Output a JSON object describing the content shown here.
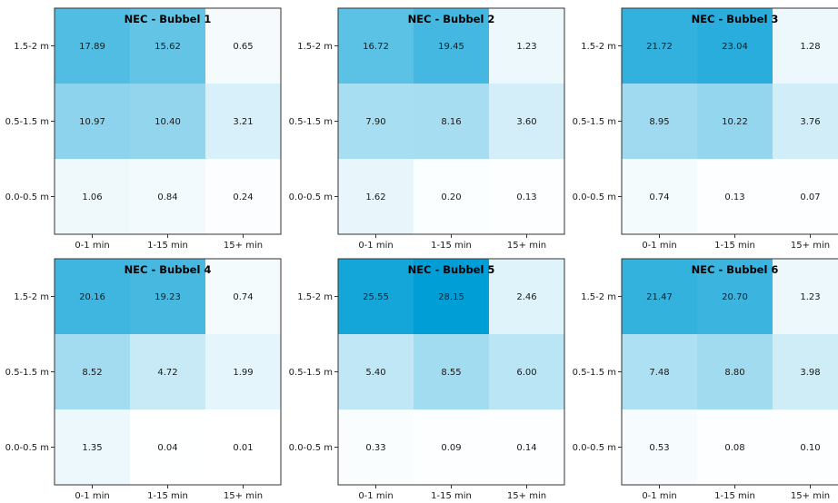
{
  "chart_data": [
    {
      "type": "heatmap",
      "title": "NEC - Bubbel 1",
      "x_categories": [
        "0-1 min",
        "1-15 min",
        "15+ min"
      ],
      "y_categories": [
        "1.5-2 m",
        "0.5-1.5 m",
        "0.0-0.5 m"
      ],
      "values": [
        [
          17.89,
          15.62,
          0.65
        ],
        [
          10.97,
          10.4,
          3.21
        ],
        [
          1.06,
          0.84,
          0.24
        ]
      ],
      "value_labels": [
        [
          "17.89",
          "15.62",
          "0.65"
        ],
        [
          "10.97",
          "10.40",
          "3.21"
        ],
        [
          "1.06",
          "0.84",
          "0.24"
        ]
      ]
    },
    {
      "type": "heatmap",
      "title": "NEC - Bubbel 2",
      "x_categories": [
        "0-1 min",
        "1-15 min",
        "15+ min"
      ],
      "y_categories": [
        "1.5-2 m",
        "0.5-1.5 m",
        "0.0-0.5 m"
      ],
      "values": [
        [
          16.72,
          19.45,
          1.23
        ],
        [
          7.9,
          8.16,
          3.6
        ],
        [
          1.62,
          0.2,
          0.13
        ]
      ],
      "value_labels": [
        [
          "16.72",
          "19.45",
          "1.23"
        ],
        [
          "7.90",
          "8.16",
          "3.60"
        ],
        [
          "1.62",
          "0.20",
          "0.13"
        ]
      ]
    },
    {
      "type": "heatmap",
      "title": "NEC - Bubbel 3",
      "x_categories": [
        "0-1 min",
        "1-15 min",
        "15+ min"
      ],
      "y_categories": [
        "1.5-2 m",
        "0.5-1.5 m",
        "0.0-0.5 m"
      ],
      "values": [
        [
          21.72,
          23.04,
          1.28
        ],
        [
          8.95,
          10.22,
          3.76
        ],
        [
          0.74,
          0.13,
          0.07
        ]
      ],
      "value_labels": [
        [
          "21.72",
          "23.04",
          "1.28"
        ],
        [
          "8.95",
          "10.22",
          "3.76"
        ],
        [
          "0.74",
          "0.13",
          "0.07"
        ]
      ]
    },
    {
      "type": "heatmap",
      "title": "NEC - Bubbel 4",
      "x_categories": [
        "0-1 min",
        "1-15 min",
        "15+ min"
      ],
      "y_categories": [
        "1.5-2 m",
        "0.5-1.5 m",
        "0.0-0.5 m"
      ],
      "values": [
        [
          20.16,
          19.23,
          0.74
        ],
        [
          8.52,
          4.72,
          1.99
        ],
        [
          1.35,
          0.04,
          0.01
        ]
      ],
      "value_labels": [
        [
          "20.16",
          "19.23",
          "0.74"
        ],
        [
          "8.52",
          "4.72",
          "1.99"
        ],
        [
          "1.35",
          "0.04",
          "0.01"
        ]
      ]
    },
    {
      "type": "heatmap",
      "title": "NEC - Bubbel 5",
      "x_categories": [
        "0-1 min",
        "1-15 min",
        "15+ min"
      ],
      "y_categories": [
        "1.5-2 m",
        "0.5-1.5 m",
        "0.0-0.5 m"
      ],
      "values": [
        [
          25.55,
          28.15,
          2.46
        ],
        [
          5.4,
          8.55,
          6.0
        ],
        [
          0.33,
          0.09,
          0.14
        ]
      ],
      "value_labels": [
        [
          "25.55",
          "28.15",
          "2.46"
        ],
        [
          "5.40",
          "8.55",
          "6.00"
        ],
        [
          "0.33",
          "0.09",
          "0.14"
        ]
      ]
    },
    {
      "type": "heatmap",
      "title": "NEC - Bubbel 6",
      "x_categories": [
        "0-1 min",
        "1-15 min",
        "15+ min"
      ],
      "y_categories": [
        "1.5-2 m",
        "0.5-1.5 m",
        "0.0-0.5 m"
      ],
      "values": [
        [
          21.47,
          20.7,
          1.23
        ],
        [
          7.48,
          8.8,
          3.98
        ],
        [
          0.53,
          0.08,
          0.1
        ]
      ],
      "value_labels": [
        [
          "21.47",
          "20.70",
          "1.23"
        ],
        [
          "7.48",
          "8.80",
          "3.98"
        ],
        [
          "0.53",
          "0.08",
          "0.10"
        ]
      ]
    }
  ],
  "colors": {
    "colormap_low": "#ffffff",
    "colormap_high": "#009ed6",
    "axis_line": "#333333",
    "text": "#1a1a1a"
  }
}
